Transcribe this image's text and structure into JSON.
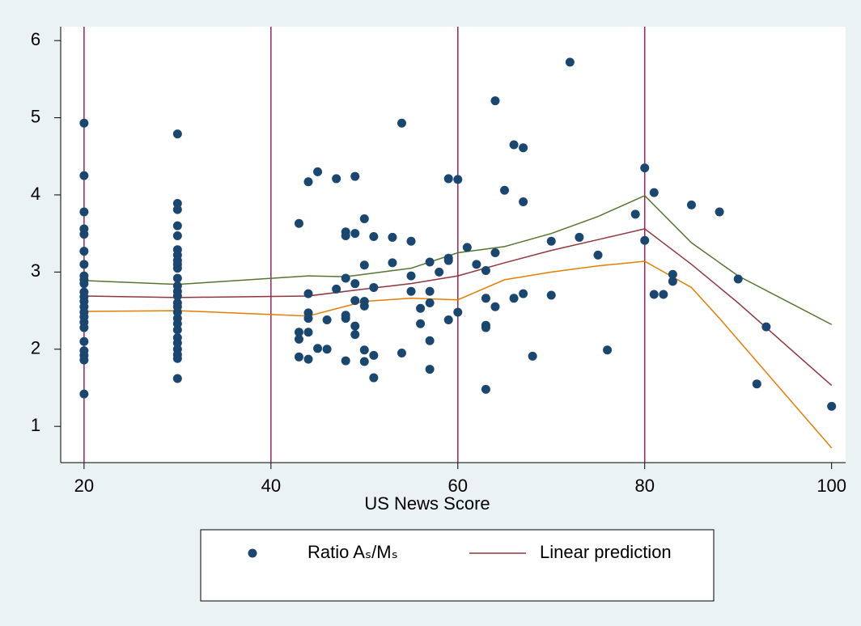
{
  "chart_data": {
    "type": "scatter",
    "xlabel": "US News Score",
    "xlim": [
      17.5,
      101.5
    ],
    "xticks": [
      20,
      40,
      60,
      80,
      100
    ],
    "ylim": [
      0.53,
      6.18
    ],
    "yticks": [
      1,
      2,
      3,
      4,
      5,
      6
    ],
    "xlines": [
      20,
      40,
      60,
      80
    ],
    "xline_color": "#97245a",
    "series": [
      {
        "name": "Ratio Aₛ/Mₛ",
        "type": "scatter",
        "color": "#1a476f",
        "x": [
          20,
          20,
          20,
          20,
          20,
          20,
          20,
          20,
          20,
          20,
          20,
          20,
          20,
          20,
          20,
          20,
          20,
          20,
          20,
          20,
          20,
          20,
          20,
          30,
          30,
          30,
          30,
          30,
          30,
          30,
          30,
          30,
          30,
          30,
          30,
          30,
          30,
          30,
          30,
          30,
          30,
          30,
          30,
          30,
          30,
          30,
          30,
          30,
          30,
          43,
          43,
          43,
          43,
          44,
          44,
          44,
          44,
          44,
          44,
          45,
          45,
          46,
          46,
          47,
          47,
          48,
          48,
          48,
          48,
          48,
          48,
          49,
          49,
          49,
          49,
          49,
          49,
          50,
          50,
          50,
          50,
          50,
          50,
          51,
          51,
          51,
          51,
          53,
          53,
          54,
          54,
          55,
          55,
          55,
          56,
          56,
          57,
          57,
          57,
          57,
          57,
          58,
          59,
          59,
          59,
          59,
          60,
          60,
          61,
          62,
          63,
          63,
          63,
          63,
          63,
          64,
          64,
          64,
          65,
          66,
          66,
          67,
          67,
          67,
          68,
          70,
          70,
          72,
          73,
          75,
          76,
          79,
          80,
          80,
          81,
          81,
          82,
          83,
          83,
          85,
          88,
          90,
          92,
          93,
          100
        ],
        "values": [
          4.93,
          4.25,
          3.78,
          3.56,
          3.49,
          3.27,
          3.1,
          2.95,
          2.9,
          2.85,
          2.74,
          2.68,
          2.62,
          2.55,
          2.48,
          2.42,
          2.35,
          2.28,
          2.1,
          1.98,
          1.92,
          1.86,
          1.42,
          4.79,
          3.89,
          3.81,
          3.6,
          3.47,
          3.29,
          3.22,
          3.15,
          3.1,
          3.05,
          2.92,
          2.82,
          2.75,
          2.69,
          2.6,
          2.55,
          2.48,
          2.4,
          2.33,
          2.25,
          2.15,
          2.08,
          2.0,
          1.93,
          1.88,
          1.62,
          3.63,
          2.22,
          2.13,
          1.9,
          4.17,
          2.72,
          2.47,
          2.4,
          2.22,
          1.87,
          4.3,
          2.01,
          2.38,
          2.0,
          4.21,
          2.78,
          3.52,
          3.47,
          2.92,
          2.44,
          2.4,
          1.85,
          4.24,
          3.5,
          2.85,
          2.63,
          2.3,
          2.19,
          3.69,
          3.09,
          2.62,
          2.56,
          1.99,
          1.84,
          3.46,
          2.8,
          1.92,
          1.63,
          3.45,
          3.12,
          4.93,
          1.95,
          3.4,
          2.95,
          2.75,
          2.53,
          2.33,
          3.13,
          2.75,
          2.6,
          2.11,
          1.74,
          3.0,
          4.21,
          3.18,
          3.15,
          2.38,
          4.2,
          2.48,
          3.32,
          3.1,
          3.02,
          2.66,
          2.31,
          2.28,
          1.48,
          5.22,
          3.25,
          2.55,
          4.06,
          4.65,
          2.66,
          4.61,
          3.91,
          2.72,
          1.91,
          3.4,
          2.7,
          5.72,
          3.45,
          3.22,
          1.99,
          3.75,
          4.35,
          3.41,
          4.03,
          2.71,
          2.71,
          2.97,
          2.88,
          3.87,
          3.78,
          2.91,
          1.55,
          2.29,
          1.26
        ]
      },
      {
        "name": "Linear prediction",
        "type": "line",
        "color": "#90353b",
        "x": [
          20,
          30,
          44,
          50,
          55,
          60,
          65,
          70,
          75,
          80,
          85,
          90,
          100
        ],
        "values": [
          2.69,
          2.67,
          2.69,
          2.78,
          2.85,
          2.95,
          3.12,
          3.28,
          3.42,
          3.56,
          3.1,
          2.6,
          1.53
        ]
      },
      {
        "type": "line",
        "color": "#55752f",
        "x": [
          20,
          30,
          44,
          48,
          55,
          60,
          65,
          70,
          75,
          80,
          85,
          90,
          100
        ],
        "values": [
          2.89,
          2.84,
          2.95,
          2.94,
          3.05,
          3.25,
          3.33,
          3.5,
          3.72,
          3.99,
          3.38,
          2.95,
          2.32
        ]
      },
      {
        "type": "line",
        "color": "#e37e00",
        "x": [
          20,
          30,
          44,
          50,
          55,
          60,
          65,
          70,
          75,
          80,
          85,
          88,
          100
        ],
        "values": [
          2.49,
          2.5,
          2.43,
          2.62,
          2.66,
          2.64,
          2.9,
          3.0,
          3.08,
          3.14,
          2.8,
          2.4,
          0.72
        ]
      }
    ]
  }
}
